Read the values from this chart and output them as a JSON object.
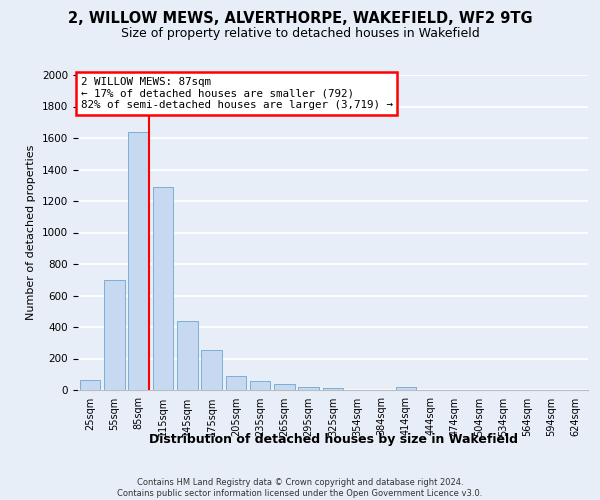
{
  "title_line1": "2, WILLOW MEWS, ALVERTHORPE, WAKEFIELD, WF2 9TG",
  "title_line2": "Size of property relative to detached houses in Wakefield",
  "xlabel": "Distribution of detached houses by size in Wakefield",
  "ylabel": "Number of detached properties",
  "bar_color": "#c6d9f0",
  "bar_edge_color": "#7bafd4",
  "categories": [
    "25sqm",
    "55sqm",
    "85sqm",
    "115sqm",
    "145sqm",
    "175sqm",
    "205sqm",
    "235sqm",
    "265sqm",
    "295sqm",
    "325sqm",
    "354sqm",
    "384sqm",
    "414sqm",
    "444sqm",
    "474sqm",
    "504sqm",
    "534sqm",
    "564sqm",
    "594sqm",
    "624sqm"
  ],
  "values": [
    65,
    700,
    1640,
    1290,
    440,
    255,
    90,
    55,
    35,
    22,
    15,
    0,
    0,
    20,
    0,
    0,
    0,
    0,
    0,
    0,
    0
  ],
  "ylim_max": 2000,
  "ytick_step": 200,
  "vline_x": 2.425,
  "annotation_text": "2 WILLOW MEWS: 87sqm\n← 17% of detached houses are smaller (792)\n82% of semi-detached houses are larger (3,719) →",
  "annotation_box_facecolor": "white",
  "annotation_box_edgecolor": "red",
  "vline_color": "red",
  "background_color": "#e8eef8",
  "grid_color": "white",
  "footer_text": "Contains HM Land Registry data © Crown copyright and database right 2024.\nContains public sector information licensed under the Open Government Licence v3.0."
}
